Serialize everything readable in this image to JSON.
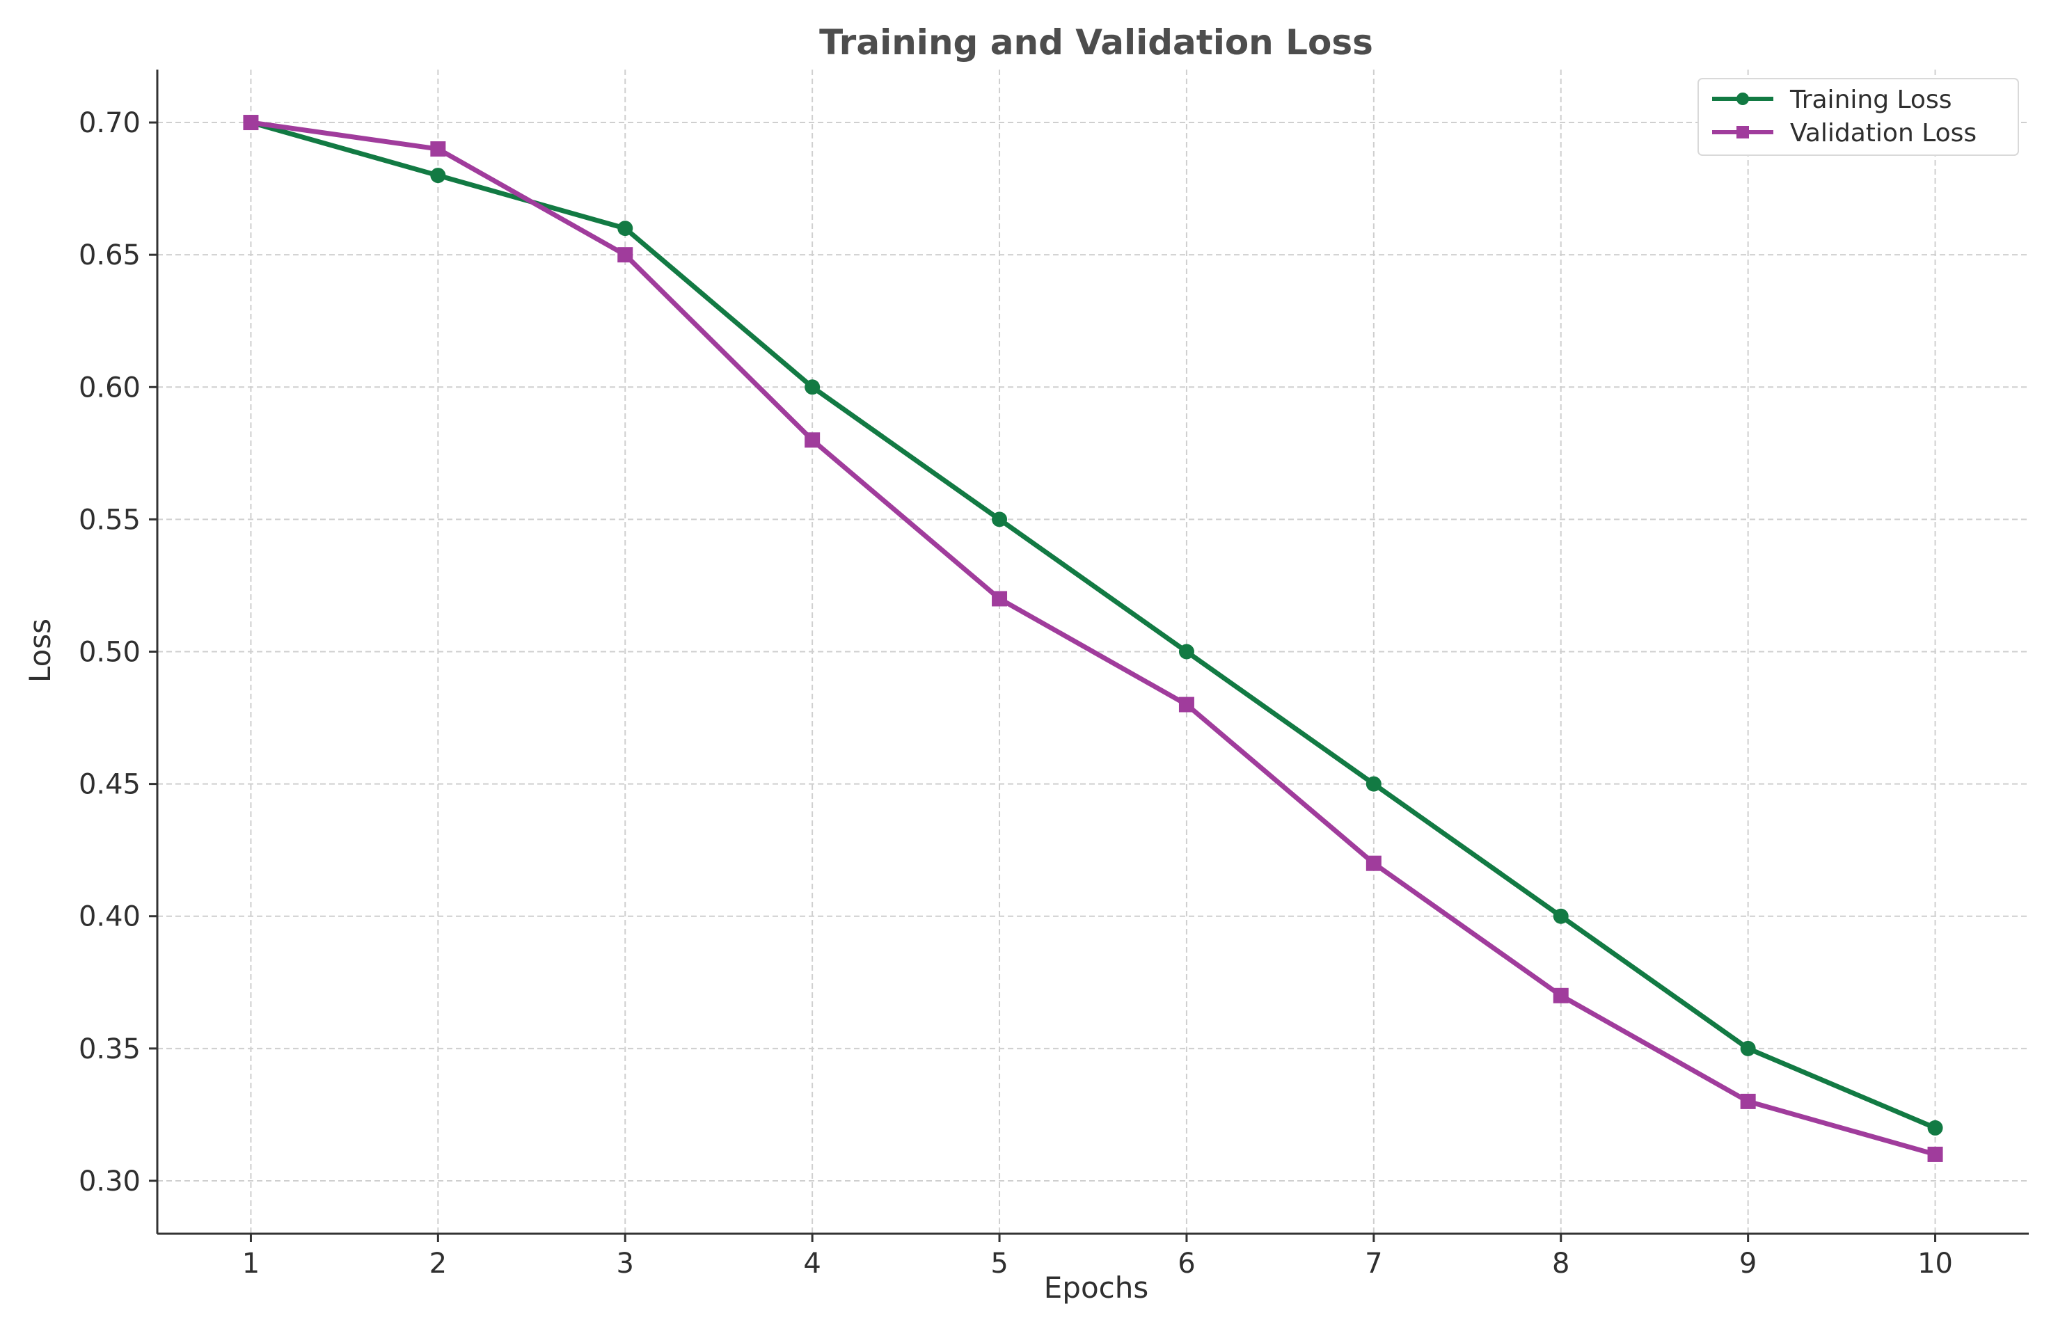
{
  "chart_data": {
    "type": "line",
    "title": "Training and Validation Loss",
    "xlabel": "Epochs",
    "ylabel": "Loss",
    "x": [
      1,
      2,
      3,
      4,
      5,
      6,
      7,
      8,
      9,
      10
    ],
    "xlim": [
      0.5,
      10.5
    ],
    "ylim": [
      0.28,
      0.72
    ],
    "xticks": [
      1,
      2,
      3,
      4,
      5,
      6,
      7,
      8,
      9,
      10
    ],
    "yticks": [
      "0.30",
      "0.35",
      "0.40",
      "0.45",
      "0.50",
      "0.55",
      "0.60",
      "0.65",
      "0.70"
    ],
    "grid": true,
    "legend_position": "top-right",
    "series": [
      {
        "name": "Training Loss",
        "color": "#127a43",
        "marker": "circle",
        "values": [
          0.7,
          0.68,
          0.66,
          0.6,
          0.55,
          0.5,
          0.45,
          0.4,
          0.35,
          0.32
        ]
      },
      {
        "name": "Validation Loss",
        "color": "#a03c9c",
        "marker": "square",
        "values": [
          0.7,
          0.69,
          0.65,
          0.58,
          0.52,
          0.48,
          0.42,
          0.37,
          0.33,
          0.31
        ]
      }
    ]
  }
}
